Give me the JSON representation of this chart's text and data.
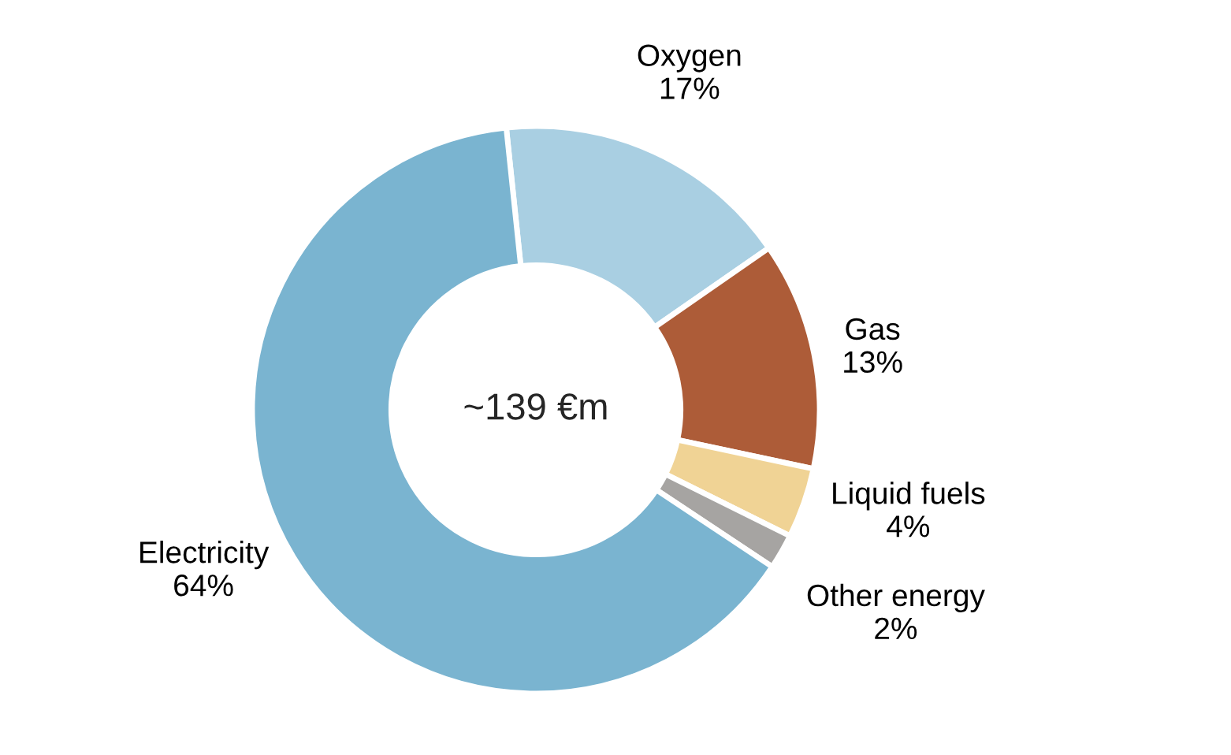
{
  "chart_data": {
    "type": "donut",
    "categories": [
      "Oxygen",
      "Gas",
      "Liquid fuels",
      "Other energy",
      "Electricity"
    ],
    "values": [
      17,
      13,
      4,
      2,
      64
    ],
    "colors": [
      "#a9cfe2",
      "#ad5c38",
      "#f0d395",
      "#a6a4a2",
      "#7ab4d0"
    ],
    "value_labels": [
      "17%",
      "13%",
      "4%",
      "2%",
      "64%"
    ],
    "annotations": [
      "~139 €m"
    ]
  }
}
